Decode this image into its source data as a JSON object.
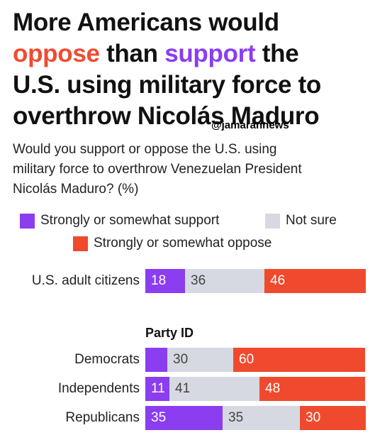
{
  "headline": {
    "line1": "More Americans would",
    "line2_oppose": "oppose",
    "line2_mid": " than ",
    "line2_support": "support",
    "line2_end": " the",
    "line3": "U.S. using military force to",
    "line4": "overthrow Nicolás Maduro"
  },
  "watermark": "@jamarannews",
  "subtitle": {
    "line1": "Would you support or oppose the U.S. using",
    "line2": "military force to overthrow Venezuelan President",
    "line3": "Nicolás Maduro? (%)"
  },
  "colors": {
    "support": "#8b3df0",
    "not_sure": "#d6d9e2",
    "oppose": "#f04a2e",
    "support_text": "#ffffff",
    "not_sure_text": "#444444",
    "oppose_text": "#ffffff"
  },
  "chart_data": {
    "type": "bar",
    "orientation": "horizontal",
    "stacked": true,
    "unit": "%",
    "xlim": [
      0,
      100
    ],
    "grid": false,
    "legend_position": "top",
    "legend": [
      "Strongly or somewhat support",
      "Not sure",
      "Strongly or somewhat oppose"
    ],
    "section_heading": "Party ID",
    "categories": [
      "U.S. adult citizens",
      "Democrats",
      "Independents",
      "Republicans"
    ],
    "series": [
      {
        "name": "Strongly or somewhat support",
        "values": [
          18,
          10,
          11,
          35
        ],
        "labels": [
          "18",
          "",
          "11",
          "35"
        ]
      },
      {
        "name": "Not sure",
        "values": [
          36,
          30,
          41,
          35
        ],
        "labels": [
          "36",
          "30",
          "41",
          "35"
        ]
      },
      {
        "name": "Strongly or somewhat oppose",
        "values": [
          46,
          60,
          48,
          30
        ],
        "labels": [
          "46",
          "60",
          "48",
          "30"
        ]
      }
    ]
  }
}
